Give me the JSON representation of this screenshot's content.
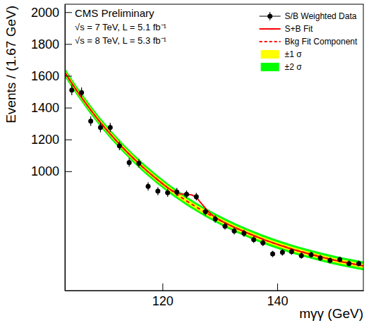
{
  "chart_data": {
    "type": "scatter",
    "annotations": [
      "CMS Preliminary",
      "√s = 7 TeV, L = 5.1 fb⁻¹",
      "√s = 8 TeV, L = 5.3 fb⁻¹"
    ],
    "xlabel": "mγγ (GeV)",
    "ylabel": "Events / (1.67 GeV)",
    "xlim": [
      103,
      155
    ],
    "ylim": [
      250,
      2050
    ],
    "xticks": [
      120,
      140
    ],
    "yticks": [
      1000,
      1200,
      1400,
      1600,
      1800,
      2000
    ],
    "legend": "top-right",
    "series": [
      {
        "name": "S/B Weighted Data",
        "type": "scatter",
        "color": "#000000",
        "marker": "circle",
        "x": [
          104.2,
          105.9,
          107.5,
          109.2,
          110.9,
          112.5,
          114.2,
          115.9,
          117.5,
          119.2,
          120.9,
          122.5,
          124.2,
          125.9,
          127.5,
          129.2,
          130.9,
          132.5,
          134.2,
          135.9,
          137.5,
          139.2,
          140.9,
          142.5,
          144.2,
          145.9,
          147.5,
          149.2,
          150.9,
          152.5,
          154.2
        ],
        "values": [
          1510,
          1495,
          1315,
          1275,
          1275,
          1160,
          1055,
          1050,
          905,
          875,
          865,
          870,
          855,
          840,
          745,
          700,
          655,
          625,
          610,
          570,
          550,
          480,
          490,
          495,
          470,
          475,
          455,
          440,
          445,
          420,
          420
        ],
        "errors": [
          32,
          32,
          30,
          30,
          29,
          28,
          27,
          27,
          26,
          25,
          25,
          25,
          24,
          24,
          23,
          23,
          22,
          22,
          22,
          21,
          21,
          20,
          20,
          20,
          19,
          19,
          19,
          18,
          18,
          18,
          18
        ]
      },
      {
        "name": "S+B Fit",
        "type": "line",
        "color": "#ff0000",
        "line_style": "solid",
        "x": [
          103,
          105,
          107,
          109,
          111,
          113,
          115,
          117,
          119,
          121,
          122,
          123,
          124,
          125,
          126,
          127,
          128,
          129,
          131,
          133,
          135,
          137,
          139,
          141,
          143,
          145,
          147,
          149,
          151,
          153,
          155
        ],
        "values": [
          1620,
          1510,
          1409,
          1315,
          1230,
          1151,
          1079,
          1012,
          951,
          894,
          872,
          858,
          855,
          852,
          830,
          788,
          746,
          715,
          674,
          640,
          609,
          580,
          553,
          529,
          506,
          486,
          467,
          449,
          433,
          419,
          405
        ]
      },
      {
        "name": "Bkg Fit Component",
        "type": "line",
        "color": "#ff0000",
        "line_style": "dashed",
        "x": [
          103,
          105,
          107,
          109,
          111,
          113,
          115,
          117,
          119,
          121,
          122,
          123,
          124,
          125,
          126,
          127,
          128,
          129,
          131,
          133,
          135,
          137,
          139,
          141,
          143,
          145,
          147,
          149,
          151,
          153,
          155
        ],
        "values": [
          1620,
          1510,
          1409,
          1315,
          1230,
          1151,
          1079,
          1012,
          951,
          894,
          868,
          843,
          818,
          795,
          773,
          751,
          731,
          711,
          674,
          640,
          609,
          580,
          553,
          529,
          506,
          486,
          467,
          449,
          433,
          419,
          405
        ]
      },
      {
        "name": "±1 σ",
        "type": "band",
        "color": "#ffff00",
        "x": [
          103,
          105,
          107,
          109,
          111,
          113,
          115,
          117,
          119,
          121,
          122,
          123,
          124,
          125,
          126,
          127,
          128,
          129,
          131,
          133,
          135,
          137,
          139,
          141,
          143,
          145,
          147,
          149,
          151,
          153,
          155
        ],
        "lower": [
          1606,
          1496,
          1395,
          1301,
          1216,
          1137,
          1065,
          998,
          937,
          880,
          854,
          829,
          804,
          781,
          759,
          737,
          717,
          697,
          660,
          626,
          595,
          566,
          539,
          515,
          492,
          472,
          453,
          435,
          419,
          405,
          391
        ],
        "upper": [
          1634,
          1524,
          1423,
          1329,
          1244,
          1165,
          1093,
          1026,
          965,
          908,
          882,
          857,
          832,
          809,
          787,
          765,
          745,
          725,
          688,
          654,
          623,
          594,
          567,
          543,
          520,
          500,
          481,
          463,
          447,
          433,
          419
        ]
      },
      {
        "name": "±2 σ",
        "type": "band",
        "color": "#00ff00",
        "x": [
          103,
          105,
          107,
          109,
          111,
          113,
          115,
          117,
          119,
          121,
          122,
          123,
          124,
          125,
          126,
          127,
          128,
          129,
          131,
          133,
          135,
          137,
          139,
          141,
          143,
          145,
          147,
          149,
          151,
          153,
          155
        ],
        "lower": [
          1592,
          1482,
          1381,
          1287,
          1202,
          1123,
          1051,
          984,
          923,
          866,
          840,
          815,
          790,
          767,
          745,
          723,
          703,
          683,
          646,
          612,
          581,
          552,
          525,
          501,
          478,
          458,
          439,
          421,
          405,
          391,
          377
        ],
        "upper": [
          1648,
          1538,
          1437,
          1343,
          1258,
          1179,
          1107,
          1040,
          979,
          922,
          896,
          871,
          846,
          823,
          801,
          779,
          759,
          739,
          702,
          668,
          637,
          608,
          581,
          557,
          534,
          514,
          495,
          477,
          461,
          447,
          433
        ]
      }
    ]
  }
}
